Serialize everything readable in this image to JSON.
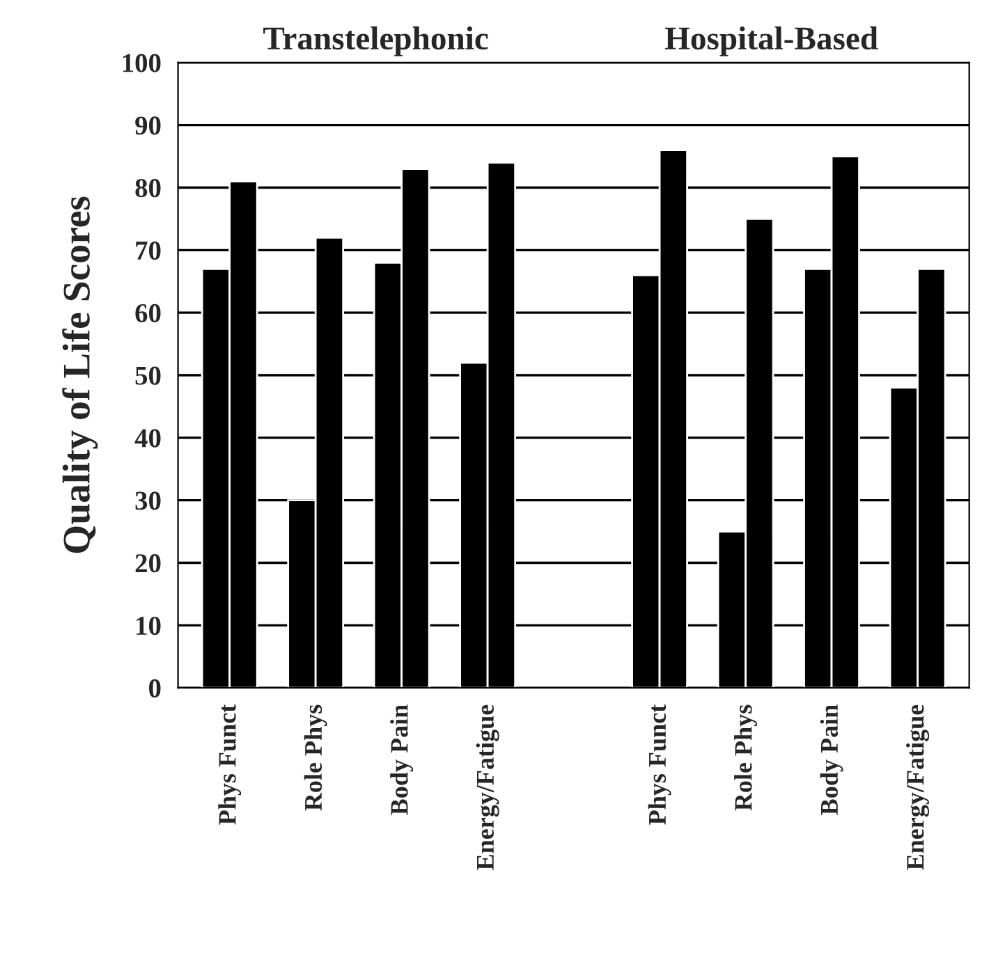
{
  "chart_data": {
    "type": "bar",
    "ylabel": "Quality of Life Scores",
    "annotations": [
      "Transtelephonic",
      "Hospital-Based"
    ],
    "categories": [
      "Phys Funct",
      "Role Phys",
      "Body Pain",
      "Energy/Fatigue",
      null,
      "Phys Funct",
      "Role Phys",
      "Body Pain",
      "Energy/Fatigue"
    ],
    "series": [
      {
        "color": "#000000",
        "values": [
          67,
          30,
          68,
          52,
          null,
          66,
          25,
          67,
          48
        ]
      },
      {
        "color": "#000000",
        "values": [
          81,
          72,
          83,
          84,
          null,
          86,
          75,
          85,
          67
        ]
      }
    ],
    "ylim": [
      0,
      100
    ],
    "yticks": [
      0,
      10,
      20,
      30,
      40,
      50,
      60,
      70,
      80,
      90,
      100
    ],
    "grid": "y"
  }
}
